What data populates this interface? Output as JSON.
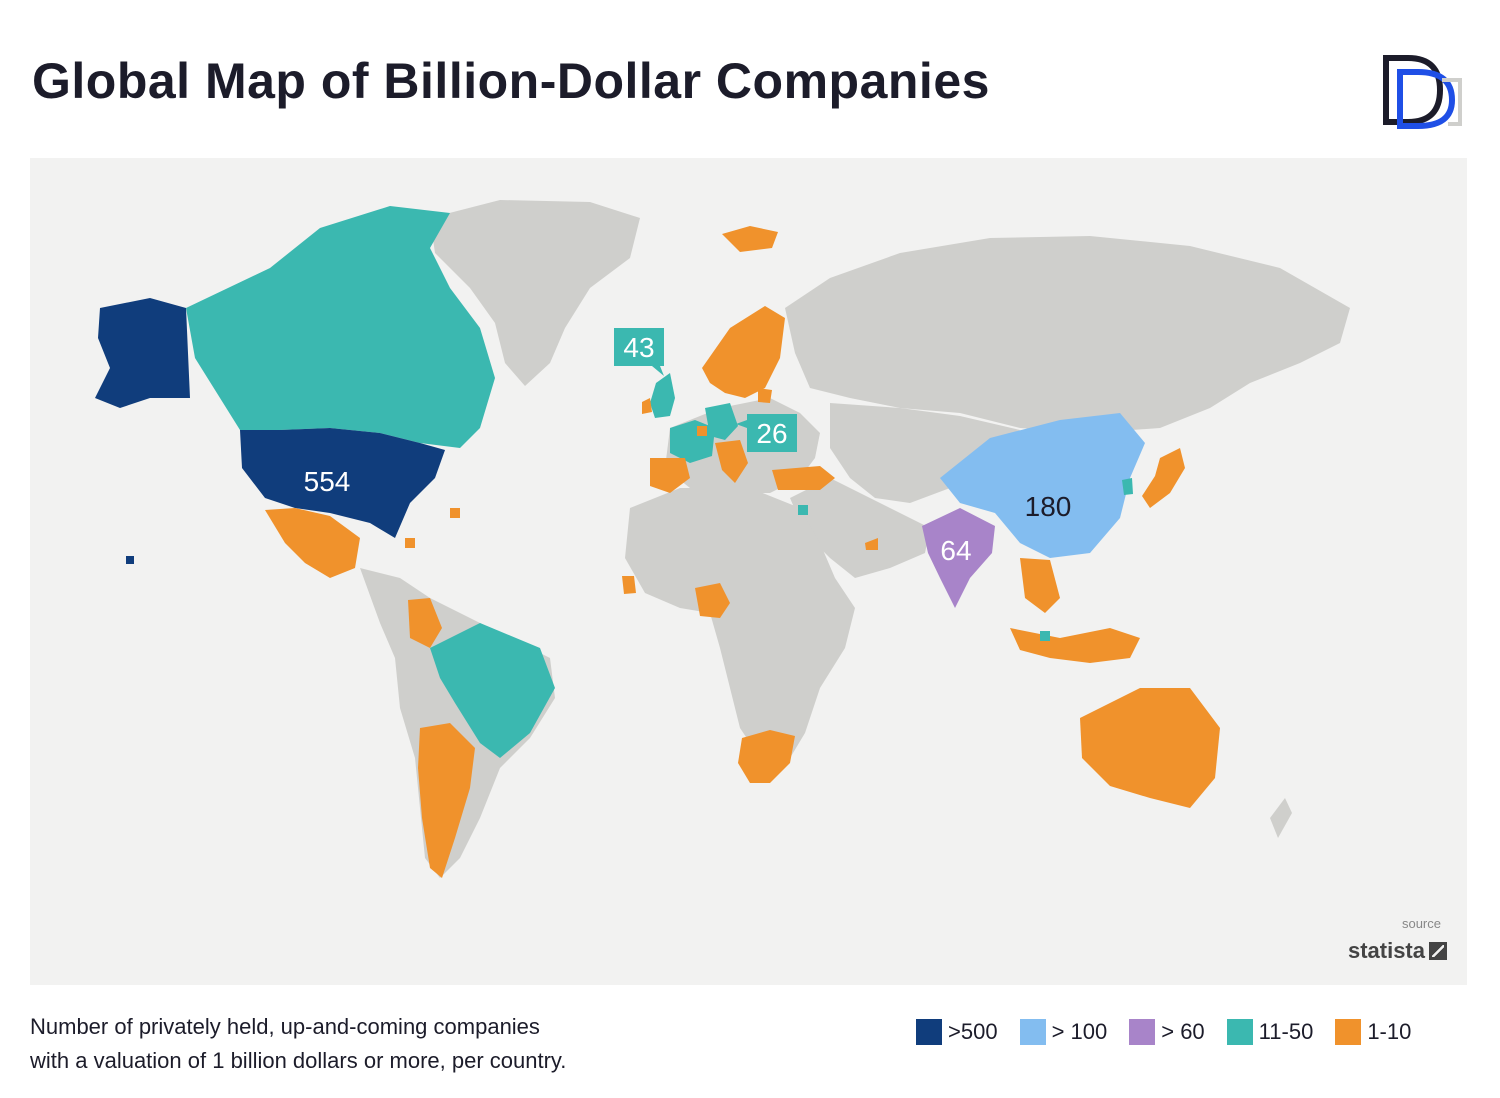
{
  "title": "Global Map of Billion-Dollar Companies",
  "caption": {
    "line1": "Number of privately held, up-and-coming companies",
    "line2": "with a valuation of 1 billion dollars or more, per country."
  },
  "source": {
    "label": "source",
    "brand": "statista"
  },
  "colors": {
    "tier_500": "#103d7c",
    "tier_100": "#83bdf0",
    "tier_60": "#a884c9",
    "tier_11_50": "#3bb8b0",
    "tier_1_10": "#f0922c",
    "no_data": "#cfcfcc",
    "ocean": "#f2f2f1"
  },
  "legend": [
    {
      "label": ">500",
      "color": "#103d7c"
    },
    {
      "label": "> 100",
      "color": "#83bdf0"
    },
    {
      "label": "> 60",
      "color": "#a884c9"
    },
    {
      "label": "11-50",
      "color": "#3bb8b0"
    },
    {
      "label": "1-10",
      "color": "#f0922c"
    }
  ],
  "callouts": {
    "usa": "554",
    "china": "180",
    "india": "64",
    "uk": "43",
    "germany": "26"
  }
}
